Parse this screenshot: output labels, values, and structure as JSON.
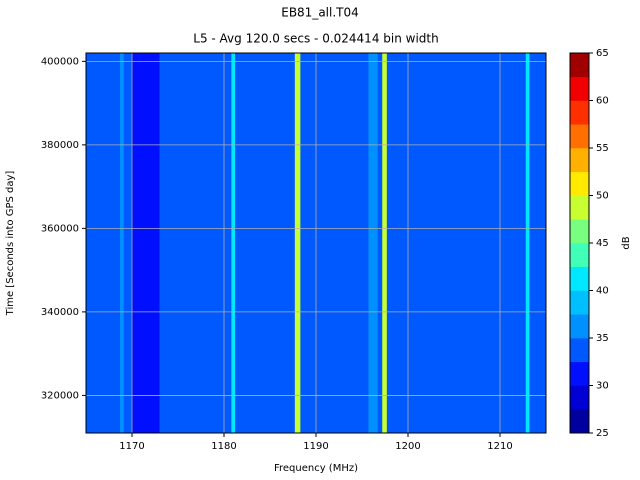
{
  "chart_data": {
    "type": "heatmap",
    "title": "EB81_all.T04",
    "subtitle": "L5 - Avg 120.0 secs - 0.024414 bin width",
    "x_label": "Frequency (MHz)",
    "y_label": "Time [Seconds into GPS day]",
    "colorbar_label": "dB",
    "xbins": [
      1165,
      1168.7,
      1169.1,
      1170,
      1173,
      1180.8,
      1181.2,
      1187.7,
      1188.3,
      1195.7,
      1196.7,
      1197.2,
      1197.7,
      1212.8,
      1213.2,
      1215
    ],
    "values": [
      33,
      36,
      33,
      31,
      33,
      40,
      33,
      49,
      33,
      37,
      34,
      48,
      33,
      41,
      33
    ],
    "xlim": [
      1165,
      1215
    ],
    "xticks": [
      1170,
      1180,
      1190,
      1200,
      1210
    ],
    "ylim": [
      311000,
      402000
    ],
    "yticks": [
      320000,
      340000,
      360000,
      380000,
      400000
    ],
    "levels": [
      25,
      27.5,
      30,
      32.5,
      35,
      37.5,
      40,
      42.5,
      45,
      47.5,
      50,
      52.5,
      55,
      57.5,
      60,
      62.5,
      65
    ],
    "colors": [
      "#00009f",
      "#0000d4",
      "#0010ff",
      "#0058ff",
      "#0090ff",
      "#00bfff",
      "#00e8ff",
      "#40ffb8",
      "#78ff80",
      "#c8ff30",
      "#ffea00",
      "#ffb000",
      "#ff7000",
      "#ff3000",
      "#f00000",
      "#a00000"
    ],
    "cticks": [
      25,
      30,
      35,
      40,
      45,
      50,
      55,
      60,
      65
    ],
    "grid": true
  }
}
